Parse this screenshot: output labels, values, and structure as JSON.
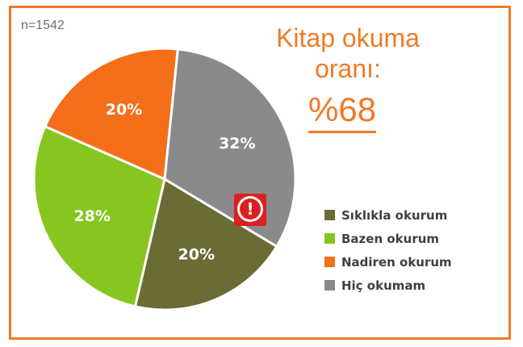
{
  "header": {
    "sample_size": "n=1542",
    "title_line1": "Kitap okuma",
    "title_line2": "oranı:",
    "reading_rate": "%68"
  },
  "alert": {
    "icon": "exclamation-icon",
    "symbol": "!"
  },
  "chart_data": {
    "type": "pie",
    "title": "",
    "slices": [
      {
        "label": "Sıklıkla okurum",
        "value": 20,
        "display": "20%",
        "color": "#6b6b35"
      },
      {
        "label": "Bazen okurum",
        "value": 28,
        "display": "28%",
        "color": "#86c61f"
      },
      {
        "label": "Nadiren okurum",
        "value": 20,
        "display": "20%",
        "color": "#f56e1a"
      },
      {
        "label": "Hiç okumam",
        "value": 32,
        "display": "32%",
        "color": "#8a8a8a"
      }
    ],
    "legend_position": "right"
  }
}
